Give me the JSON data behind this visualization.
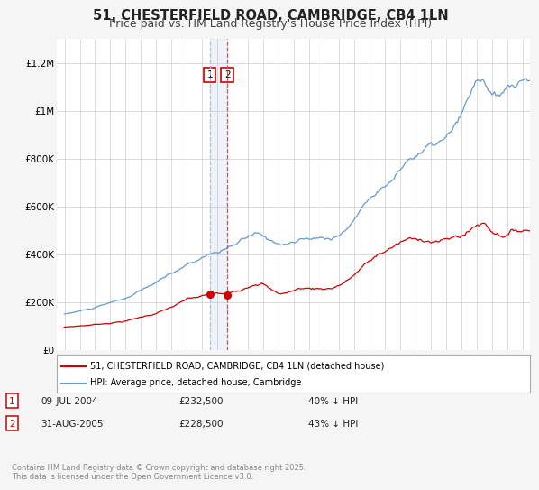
{
  "title": "51, CHESTERFIELD ROAD, CAMBRIDGE, CB4 1LN",
  "subtitle": "Price paid vs. HM Land Registry's House Price Index (HPI)",
  "ylim": [
    0,
    1300000
  ],
  "xlim": [
    1994.5,
    2025.5
  ],
  "yticks": [
    0,
    200000,
    400000,
    600000,
    800000,
    1000000,
    1200000
  ],
  "ytick_labels": [
    "£0",
    "£200K",
    "£400K",
    "£600K",
    "£800K",
    "£1M",
    "£1.2M"
  ],
  "xticks": [
    1995,
    1996,
    1997,
    1998,
    1999,
    2000,
    2001,
    2002,
    2003,
    2004,
    2005,
    2006,
    2007,
    2008,
    2009,
    2010,
    2011,
    2012,
    2013,
    2014,
    2015,
    2016,
    2017,
    2018,
    2019,
    2020,
    2021,
    2022,
    2023,
    2024,
    2025
  ],
  "red_color": "#cc0000",
  "blue_color": "#6699cc",
  "marker1_x": 2004.52,
  "marker1_y": 232500,
  "marker2_x": 2005.66,
  "marker2_y": 228500,
  "vline1_x": 2004.52,
  "vline2_x": 2005.66,
  "legend_label_red": "51, CHESTERFIELD ROAD, CAMBRIDGE, CB4 1LN (detached house)",
  "legend_label_blue": "HPI: Average price, detached house, Cambridge",
  "transaction1_date": "09-JUL-2004",
  "transaction1_price": "£232,500",
  "transaction1_hpi": "40% ↓ HPI",
  "transaction2_date": "31-AUG-2005",
  "transaction2_price": "£228,500",
  "transaction2_hpi": "43% ↓ HPI",
  "footer_text": "Contains HM Land Registry data © Crown copyright and database right 2025.\nThis data is licensed under the Open Government Licence v3.0.",
  "background_color": "#f5f5f5",
  "plot_bg_color": "#ffffff",
  "grid_color": "#cccccc",
  "title_fontsize": 10.5,
  "subtitle_fontsize": 9,
  "tick_fontsize": 7.5
}
